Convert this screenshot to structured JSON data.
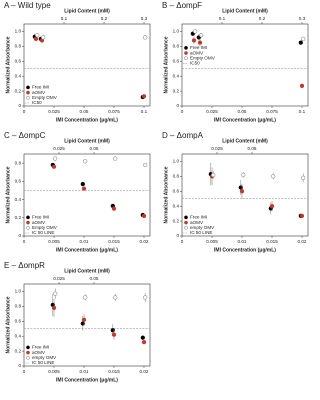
{
  "chart_data": [
    {
      "type": "scatter",
      "title": "A – Wild type",
      "x_label": "IMI Concentration (μg/mL)",
      "y_label": "Normalized Absorbance",
      "top_axis_label": "Lipid Content (mM)",
      "x2lim": [
        0,
        0.315
      ],
      "x2ticks": [
        0.1,
        0.2,
        0.3
      ],
      "x": [
        0.01,
        0.015,
        0.1
      ],
      "xlim": [
        0,
        0.105
      ],
      "xticks": [
        0,
        0.025,
        0.05,
        0.075,
        0.1
      ],
      "ylim": [
        0,
        1.1
      ],
      "yticks": [
        0,
        0.2,
        0.4,
        0.6,
        0.8,
        {
          "value": 1,
          "label": "1.0"
        }
      ],
      "hline": {
        "value": 0.5,
        "label": "IC50",
        "color": "#999999"
      },
      "legend": "lower left",
      "series": [
        {
          "name": "Free IMI",
          "color": "#000000",
          "values": [
            0.93,
            0.9,
            0.12
          ],
          "errors": [
            0.03,
            0.03,
            0.01
          ]
        },
        {
          "name": "aOMV",
          "color": "#c0392b",
          "values": [
            0.9,
            0.88,
            0.13
          ],
          "errors": [
            0.03,
            0.04,
            0.01
          ]
        },
        {
          "name": "Empty OMV",
          "color": "#ffffff",
          "values": [
            0.95,
            0.92,
            0.92
          ],
          "errors": [
            0.02,
            0.03,
            0.02
          ]
        }
      ]
    },
    {
      "type": "scatter",
      "title": "B – ΔompF",
      "x_label": "IMI Concentration (μg/mL)",
      "y_label": "Normalized Absorbance",
      "top_axis_label": "Lipid Content (mM)",
      "x2lim": [
        0,
        0.315
      ],
      "x2ticks": [
        0.1,
        0.2,
        0.3
      ],
      "x": [
        0.01,
        0.015,
        0.1
      ],
      "xlim": [
        0,
        0.105
      ],
      "xticks": [
        0,
        0.025,
        0.05,
        0.075,
        0.1
      ],
      "ylim": [
        0,
        1.1
      ],
      "yticks": [
        0,
        0.2,
        0.4,
        0.6,
        0.8,
        {
          "value": 1,
          "label": "1.0"
        }
      ],
      "hline": {
        "value": 0.5,
        "label": "IC50",
        "color": "#999999"
      },
      "legend": "center left",
      "series": [
        {
          "name": "Free IMI",
          "color": "#000000",
          "values": [
            0.97,
            0.92,
            0.85
          ],
          "errors": [
            0.03,
            0.04,
            0.02
          ]
        },
        {
          "name": "aOMV",
          "color": "#c0392b",
          "values": [
            0.88,
            0.85,
            0.27
          ],
          "errors": [
            0.05,
            0.05,
            0.03
          ]
        },
        {
          "name": "Empty OMV",
          "color": "#ffffff",
          "values": [
            1.0,
            0.95,
            0.9
          ],
          "errors": [
            0.03,
            0.03,
            0.02
          ]
        }
      ]
    },
    {
      "type": "scatter",
      "title": "C – ΔompC",
      "x_label": "IMI Concentration (μg/mL)",
      "y_label": "Normalized Absorbance",
      "top_axis_label": "Lipid Content (mM)",
      "x2lim": [
        0,
        0.09
      ],
      "x2ticks": [
        0.025,
        0.05
      ],
      "x": [
        0.005,
        0.01,
        0.015,
        0.02
      ],
      "xlim": [
        0,
        0.021
      ],
      "xticks": [
        0,
        0.005,
        0.01,
        0.015,
        0.02
      ],
      "ylim": [
        0,
        0.9
      ],
      "yticks": [
        0,
        0.2,
        0.4,
        0.6,
        0.8
      ],
      "hline": {
        "value": 0.5,
        "label": "IC 50 LINE",
        "color": "#999999"
      },
      "legend": "lower left",
      "series": [
        {
          "name": "Free IMI",
          "color": "#000000",
          "values": [
            0.78,
            0.57,
            0.33,
            0.23
          ],
          "errors": [
            0.02,
            0.02,
            0.02,
            0.01
          ]
        },
        {
          "name": "aOMV",
          "color": "#c0392b",
          "values": [
            0.76,
            0.52,
            0.3,
            0.22
          ],
          "errors": [
            0.02,
            0.02,
            0.02,
            0.01
          ]
        },
        {
          "name": "Empty OMV",
          "color": "#ffffff",
          "values": [
            0.85,
            0.82,
            0.85,
            0.78
          ],
          "errors": [
            0.02,
            0.02,
            0.02,
            0.02
          ]
        }
      ]
    },
    {
      "type": "scatter",
      "title": "D – ΔompA",
      "x_label": "IMI Concentration (μg/mL)",
      "y_label": "Normalized Absorbance",
      "top_axis_label": "Lipid Content (mM)",
      "x2lim": [
        0,
        0.09
      ],
      "x2ticks": [
        0.025,
        0.05
      ],
      "x": [
        0.005,
        0.01,
        0.015,
        0.02
      ],
      "xlim": [
        0,
        0.021
      ],
      "xticks": [
        0,
        0.005,
        0.01,
        0.015,
        0.02
      ],
      "ylim": [
        0,
        1.1
      ],
      "yticks": [
        0,
        0.2,
        0.4,
        0.6,
        0.8,
        {
          "value": 1,
          "label": "1.0"
        }
      ],
      "hline": {
        "value": 0.5,
        "label": "IC 50 LINE",
        "color": "#999999"
      },
      "legend": "lower left",
      "series": [
        {
          "name": "Free IMI",
          "color": "#000000",
          "values": [
            0.83,
            0.65,
            0.37,
            0.27
          ],
          "errors": [
            0.15,
            0.1,
            0.08,
            0.03
          ]
        },
        {
          "name": "aOMV",
          "color": "#c0392b",
          "values": [
            0.8,
            0.6,
            0.4,
            0.27
          ],
          "errors": [
            0.12,
            0.1,
            0.07,
            0.03
          ]
        },
        {
          "name": "empty OMV",
          "color": "#ffffff",
          "values": [
            0.82,
            0.82,
            0.8,
            0.78
          ],
          "errors": [
            0.05,
            0.04,
            0.04,
            0.06
          ]
        }
      ]
    },
    {
      "type": "scatter",
      "title": "E – ΔompR",
      "x_label": "IMI Concentration (μg/mL)",
      "y_label": "Normalized Absorbance",
      "top_axis_label": "Lipid Content (mM)",
      "x2lim": [
        0,
        0.09
      ],
      "x2ticks": [
        0.025,
        0.05
      ],
      "x": [
        0.005,
        0.01,
        0.015,
        0.02
      ],
      "xlim": [
        0,
        0.021
      ],
      "xticks": [
        0,
        0.005,
        0.01,
        0.015,
        0.02
      ],
      "ylim": [
        0,
        1.1
      ],
      "yticks": [
        0,
        0.2,
        0.4,
        0.6,
        0.8,
        {
          "value": 1,
          "label": "1.0"
        }
      ],
      "hline": {
        "value": 0.5,
        "label": "IC 50 LINE",
        "color": "#999999"
      },
      "legend": "lower left",
      "series": [
        {
          "name": "Free IMI",
          "color": "#000000",
          "values": [
            0.82,
            0.57,
            0.48,
            0.38
          ],
          "errors": [
            0.15,
            0.1,
            0.08,
            0.03
          ]
        },
        {
          "name": "aOMV",
          "color": "#c0392b",
          "values": [
            0.78,
            0.62,
            0.42,
            0.32
          ],
          "errors": [
            0.12,
            0.08,
            0.07,
            0.03
          ]
        },
        {
          "name": "empty OMV",
          "color": "#ffffff",
          "values": [
            0.97,
            0.92,
            0.92,
            0.92
          ],
          "errors": [
            0.07,
            0.04,
            0.05,
            0.06
          ]
        }
      ]
    }
  ]
}
